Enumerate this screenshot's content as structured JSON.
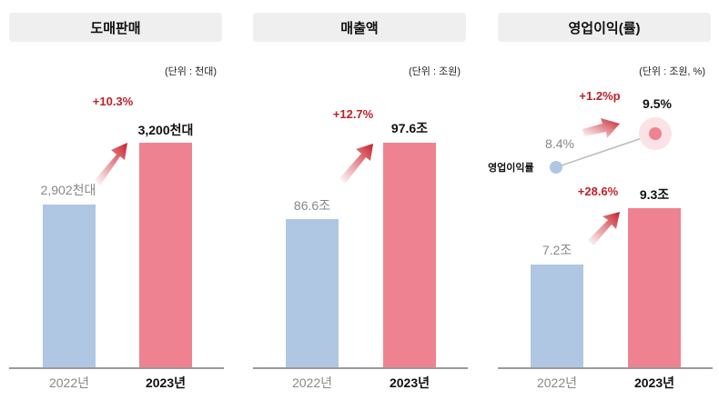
{
  "chart_data": [
    {
      "type": "bar",
      "title": "도매판매",
      "unit": "(단위 : 천대)",
      "categories": [
        "2022년",
        "2023년"
      ],
      "values": [
        2902,
        3200
      ],
      "value_labels": [
        "2,902천대",
        "3,200천대"
      ],
      "change": "+10.3%"
    },
    {
      "type": "bar",
      "title": "매출액",
      "unit": "(단위 : 조원)",
      "categories": [
        "2022년",
        "2023년"
      ],
      "values": [
        86.6,
        97.6
      ],
      "value_labels": [
        "86.6조",
        "97.6조"
      ],
      "change": "+12.7%"
    },
    {
      "type": "bar",
      "title": "영업이익(률)",
      "unit": "(단위 : 조원, %)",
      "categories": [
        "2022년",
        "2023년"
      ],
      "values": [
        7.2,
        9.3
      ],
      "value_labels": [
        "7.2조",
        "9.3조"
      ],
      "change": "+28.6%",
      "margin_line": {
        "name": "영업이익률",
        "values": [
          8.4,
          9.5
        ],
        "value_labels": [
          "8.4%",
          "9.5%"
        ],
        "change": "+1.2%p"
      }
    }
  ],
  "colors": {
    "old": "#b0c7e3",
    "new": "#ef8290",
    "change": "#c0202a"
  }
}
